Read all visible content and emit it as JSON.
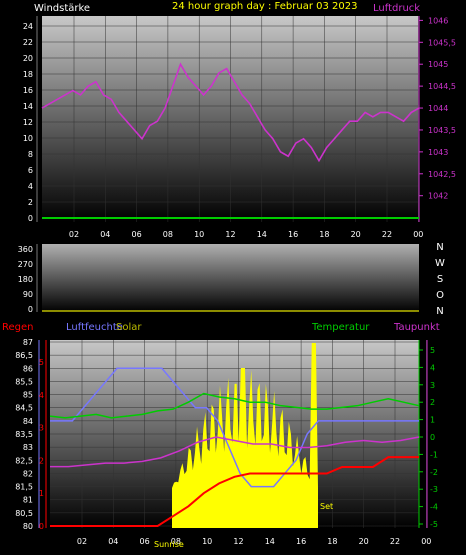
{
  "header": {
    "left": "Windstärke",
    "title": "24 hour graph day : Februar 03 2023",
    "right": "Luftdruck"
  },
  "panel3_labels": {
    "regen": "Regen",
    "luftfeuchte": "Luftfeuchte",
    "solar": "Solar",
    "temperatur": "Temperatur",
    "taupunkt": "Taupunkt",
    "sunrise": "Sunrise",
    "sunset": "Set"
  },
  "direction_labels": [
    "N",
    "W",
    "S",
    "O",
    "N"
  ],
  "colors": {
    "wind": "#00cc00",
    "pressure": "#cc33cc",
    "humidity": "#7777ff",
    "solar": "#ffff00",
    "temperature": "#00cc00",
    "dewpoint": "#cc33cc",
    "rain": "#ff0000",
    "header": "#ffff00"
  },
  "chart_data": [
    {
      "type": "line",
      "name": "wind-pressure",
      "x_ticks": [
        "02",
        "04",
        "06",
        "08",
        "10",
        "12",
        "14",
        "16",
        "18",
        "20",
        "22",
        "00"
      ],
      "left_axis": {
        "label": "Windstärke",
        "ticks": [
          "0",
          "2",
          "4",
          "6",
          "8",
          "10",
          "12",
          "14",
          "16",
          "18",
          "20",
          "22",
          "24"
        ],
        "range": [
          0,
          25
        ]
      },
      "right_axis": {
        "label": "Luftdruck",
        "ticks": [
          "1042",
          "1042,5",
          "1043",
          "1043,5",
          "1044",
          "1044,5",
          "1045",
          "1045,5",
          "1046"
        ],
        "range": [
          1041.4,
          1046.1
        ]
      },
      "series": [
        {
          "name": "Luftdruck",
          "axis": "right",
          "values": [
            1044.0,
            1044.1,
            1044.2,
            1044.3,
            1044.4,
            1044.3,
            1044.5,
            1044.6,
            1044.3,
            1044.2,
            1043.9,
            1043.7,
            1043.5,
            1043.3,
            1043.6,
            1043.7,
            1044.0,
            1044.5,
            1045.0,
            1044.7,
            1044.5,
            1044.3,
            1044.5,
            1044.8,
            1044.9,
            1044.6,
            1044.3,
            1044.1,
            1043.8,
            1043.5,
            1043.3,
            1043.0,
            1042.9,
            1043.2,
            1043.3,
            1043.1,
            1042.8,
            1043.1,
            1043.3,
            1043.5,
            1043.7,
            1043.7,
            1043.9,
            1043.8,
            1043.9,
            1043.9,
            1043.8,
            1043.7,
            1043.9,
            1044.0
          ]
        },
        {
          "name": "Wind",
          "axis": "left",
          "values": [
            0,
            0,
            0,
            0,
            0,
            0,
            0,
            0,
            0,
            0,
            0,
            0,
            0,
            0,
            0,
            0,
            0,
            0,
            0,
            0,
            0,
            0,
            0,
            0,
            0,
            0,
            0,
            0,
            0,
            0,
            0,
            0,
            0,
            0,
            0,
            0,
            0,
            0,
            0,
            0,
            0,
            0,
            0,
            0,
            0,
            0,
            0,
            0,
            0,
            0
          ]
        }
      ]
    },
    {
      "type": "line",
      "name": "wind-direction",
      "y_ticks": [
        "360",
        "270",
        "180",
        "90",
        "0"
      ],
      "range": [
        0,
        360
      ],
      "values": []
    },
    {
      "type": "line",
      "name": "humidity-temp-solar",
      "x_ticks": [
        "02",
        "04",
        "06",
        "08",
        "10",
        "12",
        "14",
        "16",
        "18",
        "20",
        "22",
        "00"
      ],
      "humidity_axis": {
        "ticks": [
          "80",
          "80,5",
          "81",
          "81,5",
          "82",
          "82,5",
          "83",
          "83,5",
          "84",
          "84,5",
          "85",
          "85,5",
          "86",
          "86,5",
          "87"
        ],
        "range": [
          80,
          87
        ]
      },
      "rain_axis": {
        "ticks": [
          "0",
          "1",
          "2",
          "3",
          "4",
          "5"
        ],
        "range": [
          0,
          5
        ]
      },
      "temperature_axis": {
        "ticks": [
          "-5",
          "-4",
          "-3",
          "-2",
          "-1",
          "0",
          "1",
          "2",
          "3",
          "4",
          "5"
        ],
        "range": [
          -5,
          5
        ]
      },
      "series": [
        {
          "name": "Luftfeuchte",
          "axis": "humidity",
          "values": [
            84,
            84,
            84,
            84.5,
            85,
            85.5,
            86,
            86,
            86,
            86,
            86,
            85.5,
            85,
            84.5,
            84.5,
            84,
            83,
            82,
            81.5,
            81.5,
            81.5,
            82,
            82.5,
            83.5,
            84,
            84,
            84,
            84,
            84,
            84,
            84,
            84,
            84,
            84
          ]
        },
        {
          "name": "Temperatur",
          "axis": "temperature",
          "values": [
            1.2,
            1.1,
            1.2,
            1.3,
            1.1,
            1.2,
            1.3,
            1.5,
            1.6,
            2.0,
            2.5,
            2.3,
            2.2,
            2.0,
            2.0,
            1.8,
            1.7,
            1.6,
            1.6,
            1.7,
            1.8,
            2.0,
            2.2,
            2.0,
            1.8
          ]
        },
        {
          "name": "Taupunkt",
          "axis": "temperature",
          "values": [
            -1.7,
            -1.7,
            -1.6,
            -1.5,
            -1.5,
            -1.4,
            -1.2,
            -0.8,
            -0.3,
            0,
            -0.2,
            -0.4,
            -0.4,
            -0.6,
            -0.6,
            -0.5,
            -0.3,
            -0.2,
            -0.3,
            -0.2,
            0
          ]
        },
        {
          "name": "Regen",
          "axis": "rain",
          "values": [
            0,
            0,
            0,
            0,
            0,
            0,
            0,
            0,
            0.3,
            0.6,
            1.0,
            1.3,
            1.5,
            1.6,
            1.6,
            1.6,
            1.6,
            1.6,
            1.6,
            1.8,
            1.8,
            1.8,
            2.1,
            2.1,
            2.1
          ]
        }
      ]
    }
  ]
}
